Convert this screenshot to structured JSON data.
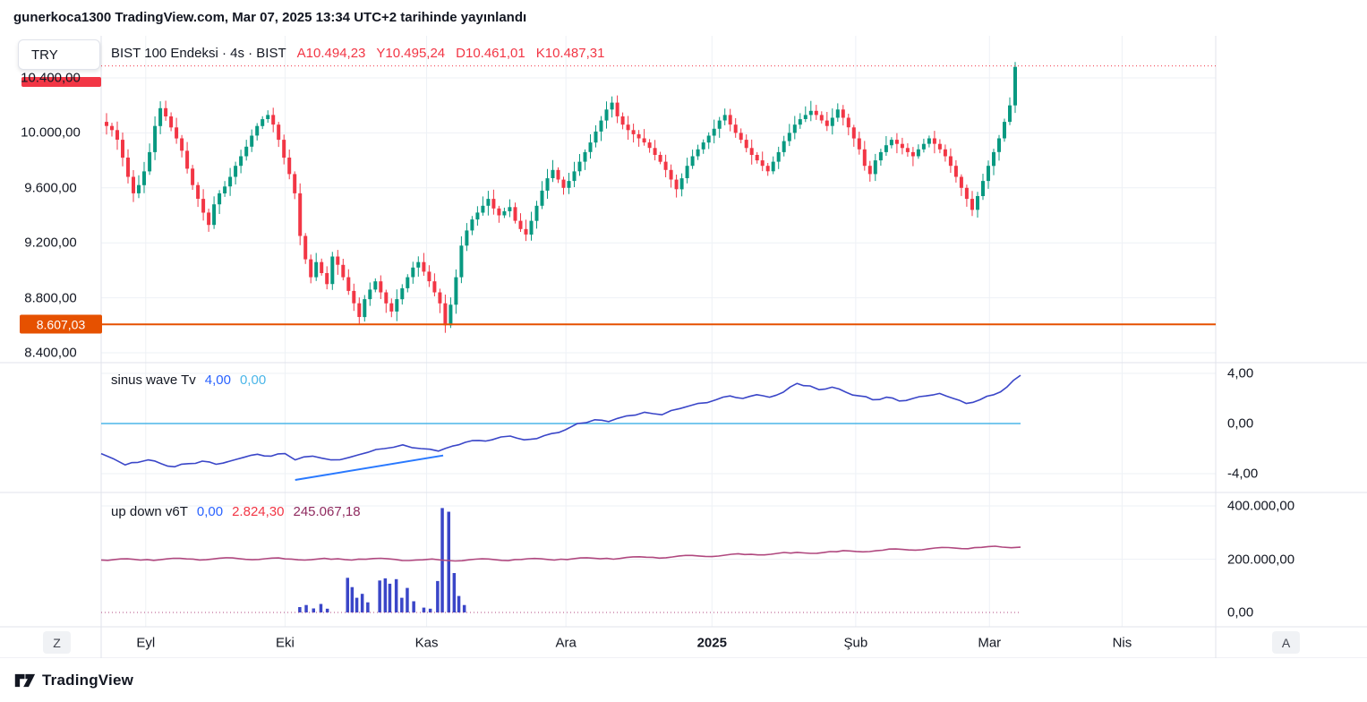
{
  "header": {
    "publication_line": "gunerkoca1300 TradingView.com, Mar 07, 2025 13:34 UTC+2 tarihinde yayınlandı"
  },
  "toolbar": {
    "currency_label": "TRY"
  },
  "footer": {
    "brand": "TradingView"
  },
  "time_axis": {
    "left_button": "Z",
    "right_button": "A",
    "labels": [
      {
        "text": "Eyl",
        "f": 0.04
      },
      {
        "text": "Eki",
        "f": 0.165
      },
      {
        "text": "Kas",
        "f": 0.292
      },
      {
        "text": "Ara",
        "f": 0.417
      },
      {
        "text": "2025",
        "f": 0.548,
        "bold": true
      },
      {
        "text": "Şub",
        "f": 0.677
      },
      {
        "text": "Mar",
        "f": 0.797
      },
      {
        "text": "Nis",
        "f": 0.916
      }
    ]
  },
  "panes": {
    "main": {
      "legend": {
        "title": "BIST 100 Endeksi · 4s · BIST",
        "ohlc": [
          {
            "label": "A",
            "value": "10.494,23"
          },
          {
            "label": "Y",
            "value": "10.495,24"
          },
          {
            "label": "D",
            "value": "10.461,01"
          },
          {
            "label": "K",
            "value": "10.487,31"
          }
        ]
      },
      "axis_labels": [
        {
          "text": "10.400,00",
          "price": 10400
        },
        {
          "text": "10.000,00",
          "price": 10000
        },
        {
          "text": "9.600,00",
          "price": 9600
        },
        {
          "text": "9.200,00",
          "price": 9200
        },
        {
          "text": "8.800,00",
          "price": 8800
        },
        {
          "text": "8.400,00",
          "price": 8400
        }
      ],
      "price_line": {
        "text": "8.607,03",
        "price": 8607.03,
        "color": "#e65100"
      }
    },
    "sinus": {
      "legend": {
        "title": "sinus wave Tv",
        "values": [
          {
            "text": "4,00",
            "color": "#2962ff"
          },
          {
            "text": "0,00",
            "color": "#4bb6e8"
          }
        ]
      },
      "axis_labels": [
        {
          "text": "4,00",
          "value": 4
        },
        {
          "text": "0,00",
          "value": 0
        },
        {
          "text": "-4,00",
          "value": -4
        }
      ]
    },
    "updown": {
      "legend": {
        "title": "up down v6T",
        "values": [
          {
            "text": "0,00",
            "color": "#2962ff"
          },
          {
            "text": "2.824,30",
            "color": "#f23645"
          },
          {
            "text": "245.067,18",
            "color": "#8f2a5f"
          }
        ]
      },
      "axis_labels": [
        {
          "text": "400.000,00",
          "value": 400000
        },
        {
          "text": "200.000,00",
          "value": 200000
        },
        {
          "text": "0,00",
          "value": 0
        }
      ]
    }
  },
  "chart_data": [
    {
      "type": "candlestick",
      "title": "BIST 100 Endeksi · 4s · BIST",
      "symbol": "BIST 100 Endeksi",
      "interval": "4s",
      "exchange": "BIST",
      "currency": "TRY",
      "ohlc_last": {
        "open": 10494.23,
        "high": 10495.24,
        "low": 10461.01,
        "close": 10487.31
      },
      "y_ticks": [
        10400,
        10000,
        9600,
        9200,
        8800,
        8400
      ],
      "ylim": [
        8315,
        10700
      ],
      "colors": {
        "up": "#089981",
        "down": "#f23645"
      },
      "levels": [
        {
          "value": 8607.03,
          "label": "8.607,03",
          "style": "solid",
          "color": "#e65100"
        },
        {
          "value": 10487.31,
          "style": "dotted",
          "color": "#f23645"
        }
      ],
      "first_open": 10080,
      "closes": [
        10050,
        10020,
        9950,
        9820,
        9680,
        9560,
        9620,
        9720,
        9860,
        10050,
        10180,
        10120,
        10040,
        9960,
        9870,
        9740,
        9620,
        9520,
        9420,
        9330,
        9480,
        9560,
        9610,
        9680,
        9760,
        9830,
        9900,
        9980,
        10050,
        10100,
        10130,
        10060,
        9950,
        9820,
        9700,
        9560,
        9250,
        9080,
        8950,
        9060,
        8980,
        8900,
        9100,
        9040,
        8950,
        8850,
        8760,
        8660,
        8790,
        8860,
        8920,
        8840,
        8760,
        8700,
        8790,
        8870,
        8950,
        9020,
        9060,
        8990,
        8920,
        8840,
        8760,
        8600,
        8750,
        8950,
        9180,
        9290,
        9370,
        9420,
        9470,
        9520,
        9450,
        9400,
        9430,
        9460,
        9360,
        9300,
        9260,
        9360,
        9470,
        9580,
        9670,
        9730,
        9660,
        9600,
        9650,
        9720,
        9790,
        9860,
        9930,
        10010,
        10090,
        10170,
        10220,
        10120,
        10060,
        10020,
        9990,
        9960,
        9930,
        9890,
        9840,
        9790,
        9730,
        9660,
        9590,
        9670,
        9760,
        9830,
        9880,
        9930,
        9980,
        10030,
        10090,
        10130,
        10060,
        10000,
        9950,
        9890,
        9840,
        9800,
        9760,
        9720,
        9790,
        9860,
        9940,
        10000,
        10060,
        10100,
        10130,
        10160,
        10130,
        10090,
        10050,
        10110,
        10170,
        10110,
        10040,
        9960,
        9880,
        9760,
        9700,
        9800,
        9860,
        9910,
        9950,
        9920,
        9890,
        9860,
        9830,
        9880,
        9920,
        9960,
        9920,
        9880,
        9830,
        9760,
        9680,
        9600,
        9520,
        9440,
        9540,
        9650,
        9760,
        9860,
        9960,
        10080,
        10200,
        10480
      ],
      "wick_overrides": {
        "high": {
          "10": 10230,
          "94": 10265,
          "136": 10215,
          "169": 10515
        },
        "low": {
          "19": 9280,
          "47": 8610,
          "63": 8545,
          "161": 9395
        }
      }
    },
    {
      "type": "line",
      "title": "sinus wave Tv",
      "y_ticks": [
        4,
        0,
        -4
      ],
      "ylim": [
        -5.2,
        5.2
      ],
      "color": "#3a46c8",
      "zero_line": {
        "value": 0,
        "color": "#4bb6e8"
      },
      "trendline": {
        "x1": 0.211,
        "v1": -4.5,
        "x2": 0.372,
        "v2": -2.55,
        "color": "#2979ff"
      },
      "points": [
        [
          0,
          -2.4
        ],
        [
          0.013,
          -2.8
        ],
        [
          0.026,
          -3.3
        ],
        [
          0.04,
          -3.1
        ],
        [
          0.051,
          -2.9
        ],
        [
          0.065,
          -3.2
        ],
        [
          0.08,
          -3.45
        ],
        [
          0.095,
          -3.2
        ],
        [
          0.11,
          -3.0
        ],
        [
          0.125,
          -3.25
        ],
        [
          0.14,
          -3.0
        ],
        [
          0.155,
          -2.7
        ],
        [
          0.17,
          -2.45
        ],
        [
          0.185,
          -2.6
        ],
        [
          0.2,
          -2.4
        ],
        [
          0.211,
          -2.9
        ],
        [
          0.23,
          -2.6
        ],
        [
          0.25,
          -2.9
        ],
        [
          0.27,
          -2.7
        ],
        [
          0.29,
          -2.3
        ],
        [
          0.308,
          -2.0
        ],
        [
          0.328,
          -1.7
        ],
        [
          0.348,
          -2.0
        ],
        [
          0.367,
          -2.2
        ],
        [
          0.382,
          -1.8
        ],
        [
          0.396,
          -1.5
        ],
        [
          0.411,
          -1.35
        ],
        [
          0.425,
          -1.3
        ],
        [
          0.445,
          -1.0
        ],
        [
          0.46,
          -1.3
        ],
        [
          0.474,
          -1.2
        ],
        [
          0.49,
          -0.8
        ],
        [
          0.505,
          -0.5
        ],
        [
          0.518,
          0.0
        ],
        [
          0.537,
          0.3
        ],
        [
          0.552,
          0.15
        ],
        [
          0.571,
          0.6
        ],
        [
          0.591,
          0.9
        ],
        [
          0.61,
          0.7
        ],
        [
          0.63,
          1.2
        ],
        [
          0.649,
          1.6
        ],
        [
          0.669,
          1.9
        ],
        [
          0.684,
          2.2
        ],
        [
          0.698,
          2.0
        ],
        [
          0.713,
          2.3
        ],
        [
          0.727,
          2.1
        ],
        [
          0.742,
          2.5
        ],
        [
          0.757,
          3.2
        ],
        [
          0.771,
          3.0
        ],
        [
          0.781,
          2.7
        ],
        [
          0.795,
          2.9
        ],
        [
          0.81,
          2.5
        ],
        [
          0.825,
          2.2
        ],
        [
          0.839,
          1.9
        ],
        [
          0.854,
          2.1
        ],
        [
          0.868,
          1.8
        ],
        [
          0.883,
          2.0
        ],
        [
          0.897,
          2.2
        ],
        [
          0.912,
          2.4
        ],
        [
          0.927,
          2.0
        ],
        [
          0.941,
          1.6
        ],
        [
          0.956,
          1.9
        ],
        [
          0.971,
          2.3
        ],
        [
          0.985,
          2.9
        ],
        [
          1,
          3.85
        ]
      ]
    },
    {
      "type": "line+histogram",
      "title": "up down v6T",
      "y_ticks": [
        400000,
        200000,
        0
      ],
      "ylim": [
        0,
        450000
      ],
      "line_color": "#b0487f",
      "bar_color": "#3a46c8",
      "last_value": 245067.18,
      "line_points": [
        [
          0,
          197000
        ],
        [
          0.05,
          198500
        ],
        [
          0.1,
          200500
        ],
        [
          0.15,
          202000
        ],
        [
          0.2,
          201000
        ],
        [
          0.25,
          199500
        ],
        [
          0.28,
          200500
        ],
        [
          0.32,
          199000
        ],
        [
          0.35,
          197500
        ],
        [
          0.37,
          196500
        ],
        [
          0.4,
          197500
        ],
        [
          0.45,
          198500
        ],
        [
          0.5,
          200000
        ],
        [
          0.55,
          203000
        ],
        [
          0.6,
          207000
        ],
        [
          0.65,
          212000
        ],
        [
          0.7,
          217500
        ],
        [
          0.75,
          223000
        ],
        [
          0.8,
          228000
        ],
        [
          0.85,
          233500
        ],
        [
          0.9,
          239000
        ],
        [
          0.95,
          243500
        ],
        [
          0.98,
          245500
        ],
        [
          1,
          245067
        ]
      ],
      "bars": [
        [
          0.216,
          20000
        ],
        [
          0.223,
          28000
        ],
        [
          0.231,
          15000
        ],
        [
          0.239,
          32000
        ],
        [
          0.246,
          14000
        ],
        [
          0.268,
          130000
        ],
        [
          0.273,
          95000
        ],
        [
          0.278,
          55000
        ],
        [
          0.284,
          70000
        ],
        [
          0.29,
          38000
        ],
        [
          0.303,
          120000
        ],
        [
          0.309,
          128000
        ],
        [
          0.314,
          108000
        ],
        [
          0.321,
          125000
        ],
        [
          0.327,
          55000
        ],
        [
          0.333,
          92000
        ],
        [
          0.34,
          42000
        ],
        [
          0.351,
          18000
        ],
        [
          0.358,
          14000
        ],
        [
          0.366,
          118000
        ],
        [
          0.371,
          392000
        ],
        [
          0.378,
          378000
        ],
        [
          0.384,
          148000
        ],
        [
          0.389,
          62000
        ],
        [
          0.395,
          28000
        ]
      ]
    }
  ]
}
